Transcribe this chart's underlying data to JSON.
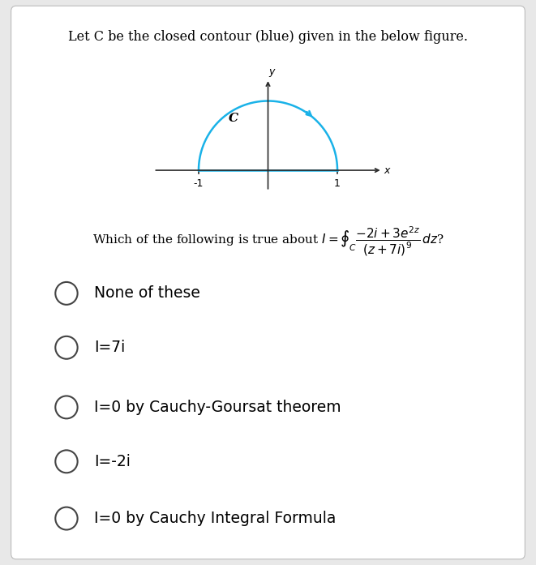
{
  "title": "Let C be the closed contour (blue) given in the below figure.",
  "title_fontsize": 11.5,
  "background_color": "#e8e8e8",
  "panel_color": "#ffffff",
  "contour_color": "#1ab2e8",
  "contour_linewidth": 1.8,
  "axis_color": "#2a2a2a",
  "label_C": "C",
  "label_y": "y",
  "label_x": "x",
  "tick_neg1": "-1",
  "tick_1": "1",
  "options": [
    "None of these",
    "I=7i",
    "I=0 by Cauchy-Goursat theorem",
    "I=-2i",
    "I=0 by Cauchy Integral Formula"
  ],
  "option_fontsize": 13.5,
  "circle_color": "#444444",
  "circle_lw": 1.5,
  "circle_r": 10
}
